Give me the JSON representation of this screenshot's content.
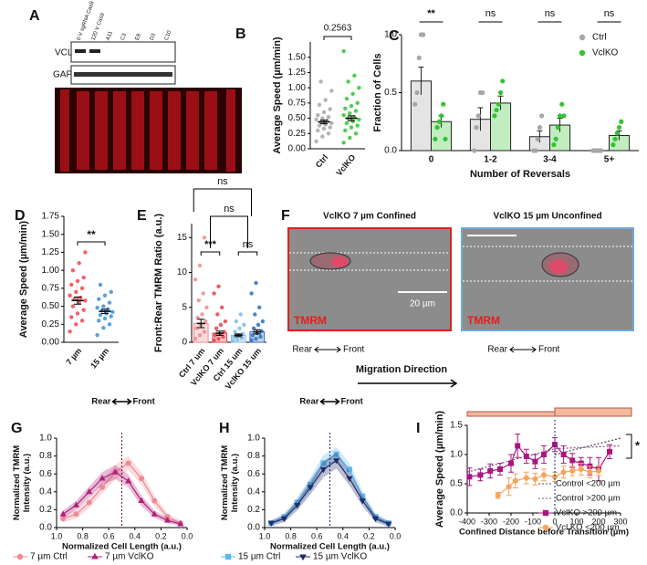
{
  "panel_a": {
    "panel": "A",
    "lanes": [
      "0 V sgRNA Cas9",
      "120 V Cas9",
      "A11",
      "C3",
      "E8",
      "D3",
      "C10"
    ],
    "bands": [
      "VCL",
      "GAPDH"
    ]
  },
  "panel_f": {
    "panel": "F",
    "images": [
      {
        "title": "VclKO 7 µm Confined",
        "stain": "TMRM",
        "scale_bar": "20 µm"
      },
      {
        "title": "VclKO 15 µm Unconfined",
        "stain": "TMRM"
      }
    ],
    "orientation": [
      {
        "rear": "Rear",
        "front": "Front"
      },
      {
        "rear": "Rear",
        "front": "Front"
      }
    ],
    "direction": "Migration Direction"
  },
  "chart_data": [
    {
      "panel": "B",
      "type": "strip",
      "ylabel": "Average Speed (µm/min)",
      "categories": [
        "Ctrl",
        "VclKO"
      ],
      "ylim": [
        0,
        1.75
      ],
      "yticks": [
        {
          "value": 0,
          "label": "0.00"
        },
        {
          "value": 0.25,
          "label": "0.25"
        },
        {
          "value": 0.5,
          "label": "0.50"
        },
        {
          "value": 0.75,
          "label": "0.75"
        },
        {
          "value": 1,
          "label": "1.00"
        },
        {
          "value": 1.25,
          "label": "1.25"
        },
        {
          "value": 1.5,
          "label": "1.50"
        }
      ],
      "annotations": [
        "0.2563"
      ],
      "groups": [
        {
          "color": "#a6a6a6",
          "values": [
            0.12,
            0.2,
            0.25,
            0.3,
            0.33,
            0.35,
            0.38,
            0.4,
            0.42,
            0.44,
            0.46,
            0.48,
            0.5,
            0.52,
            0.55,
            0.6,
            0.65,
            0.72,
            0.8,
            0.95,
            1.1
          ],
          "mean": 0.44,
          "sem": 0.03
        },
        {
          "color": "#33c233",
          "values": [
            0.1,
            0.18,
            0.25,
            0.3,
            0.35,
            0.38,
            0.42,
            0.45,
            0.48,
            0.5,
            0.52,
            0.55,
            0.58,
            0.62,
            0.66,
            0.7,
            0.75,
            0.82,
            0.9,
            1.0,
            1.1,
            1.2,
            1.6
          ],
          "mean": 0.5,
          "sem": 0.04
        }
      ]
    },
    {
      "panel": "C",
      "type": "bar",
      "xlabel": "Number of Reversals",
      "ylabel": "Fraction of Cells",
      "categories": [
        "0",
        "1-2",
        "3-4",
        "5+"
      ],
      "ylim": [
        0,
        1.0
      ],
      "yticks": [
        {
          "value": 0,
          "label": "0.0"
        },
        0.5,
        {
          "value": 1,
          "label": "1.0"
        }
      ],
      "annotations": [
        "**",
        "ns",
        "ns",
        "ns"
      ],
      "legend": "upper right",
      "series": [
        {
          "name": "Ctrl",
          "color": "#a6a6a6",
          "values": [
            0.6,
            0.27,
            0.12,
            0.0
          ],
          "errors": [
            0.12,
            0.1,
            0.05,
            0.0
          ],
          "points": [
            [
              0.4,
              0.5,
              0.8,
              1.0,
              1.0
            ],
            [
              0.0,
              0.2,
              0.3,
              0.5,
              0.5
            ],
            [
              0.0,
              0.0,
              0.1,
              0.2,
              0.3
            ],
            [
              0.0,
              0.0,
              0.0,
              0.0,
              0.0
            ]
          ]
        },
        {
          "name": "VclKO",
          "color": "#33c233",
          "values": [
            0.25,
            0.41,
            0.22,
            0.13
          ],
          "errors": [
            0.05,
            0.06,
            0.06,
            0.04
          ],
          "points": [
            [
              0.1,
              0.2,
              0.25,
              0.3,
              0.4,
              0.1
            ],
            [
              0.3,
              0.35,
              0.4,
              0.5,
              0.6
            ],
            [
              0.05,
              0.1,
              0.2,
              0.3,
              0.4,
              0.3
            ],
            [
              0.05,
              0.1,
              0.15,
              0.2,
              0.25
            ]
          ]
        }
      ]
    },
    {
      "panel": "D",
      "type": "strip",
      "ylabel": "Average Speed (µm/min)",
      "categories": [
        "7 µm",
        "15 µm"
      ],
      "ylim": [
        0,
        1.75
      ],
      "yticks": [
        {
          "value": 0,
          "label": "0.00"
        },
        {
          "value": 0.25,
          "label": "0.25"
        },
        {
          "value": 0.5,
          "label": "0.50"
        },
        {
          "value": 0.75,
          "label": "0.75"
        },
        {
          "value": 1,
          "label": "1.00"
        },
        {
          "value": 1.25,
          "label": "1.25"
        },
        {
          "value": 1.5,
          "label": "1.50"
        },
        {
          "value": 1.75,
          "label": "1.75"
        }
      ],
      "annotations": [
        "**"
      ],
      "groups": [
        {
          "color": "#f0454c",
          "values": [
            0.15,
            0.25,
            0.3,
            0.35,
            0.4,
            0.45,
            0.5,
            0.55,
            0.58,
            0.6,
            0.62,
            0.65,
            0.7,
            0.75,
            0.8,
            0.85,
            0.9,
            1.0,
            1.1,
            1.25
          ],
          "mean": 0.58,
          "sem": 0.05
        },
        {
          "color": "#3d8fd8",
          "values": [
            0.1,
            0.2,
            0.25,
            0.3,
            0.33,
            0.36,
            0.38,
            0.4,
            0.42,
            0.44,
            0.46,
            0.48,
            0.5,
            0.55,
            0.6,
            0.65,
            0.7,
            0.8
          ],
          "mean": 0.43,
          "sem": 0.03
        }
      ]
    },
    {
      "panel": "E",
      "type": "strip",
      "bars": true,
      "ylabel": "Front:Rear TMRM Ratio (a.u.)",
      "categories": [
        "Ctrl 7 um",
        "VclKO 7 um",
        "Ctrl 15 um",
        "VclKO 15 um"
      ],
      "ylim": [
        0,
        17
      ],
      "yticks": [
        0,
        5,
        10,
        15
      ],
      "annotations": [
        "***",
        "ns",
        "ns",
        "ns"
      ],
      "groups": [
        {
          "color": "#f08a8e",
          "values": [
            0.5,
            1,
            1.5,
            2,
            2.5,
            3,
            3.5,
            4,
            5,
            6,
            7,
            9,
            11,
            15
          ],
          "mean": 2.7,
          "sem": 0.6
        },
        {
          "color": "#e8414b",
          "values": [
            0.3,
            0.5,
            0.8,
            1,
            1.2,
            1.5,
            2,
            2.5,
            3,
            4,
            5,
            7,
            8
          ],
          "mean": 1.3,
          "sem": 0.3
        },
        {
          "color": "#7fbbe8",
          "values": [
            0.2,
            0.4,
            0.6,
            0.8,
            1,
            1.2,
            1.5,
            2,
            2.5,
            3,
            4
          ],
          "mean": 1.0,
          "sem": 0.2
        },
        {
          "color": "#2f6fbf",
          "values": [
            0.3,
            0.5,
            0.8,
            1,
            1.3,
            1.6,
            2,
            2.5,
            3,
            4,
            5,
            7,
            8.5
          ],
          "mean": 1.5,
          "sem": 0.3
        }
      ]
    },
    {
      "panel": "G",
      "type": "line",
      "xlabel": "Normalized Cell Length (a.u.)",
      "ylabel": [
        "Normalized TMRM",
        "Intensity (a.u.)"
      ],
      "xlim": [
        1,
        0
      ],
      "xticks": [
        {
          "value": 1,
          "label": "1.0"
        },
        0.8,
        0.6,
        0.4,
        0.2,
        {
          "value": 0,
          "label": "0.0"
        }
      ],
      "ylim": [
        0,
        1
      ],
      "yticks": [
        {
          "value": 0,
          "label": "0.0"
        },
        0.2,
        0.4,
        0.6,
        0.8,
        {
          "value": 1,
          "label": "1.0"
        }
      ],
      "vline": 0.5,
      "annotations": [
        "Rear",
        "Front"
      ],
      "legend": "below",
      "x": [
        0.95,
        0.85,
        0.75,
        0.65,
        0.55,
        0.45,
        0.35,
        0.25,
        0.15,
        0.05
      ],
      "series": [
        {
          "name": "7 µm Ctrl",
          "color": "#f08a96",
          "marker": "circle",
          "band": true,
          "values": [
            0.1,
            0.15,
            0.28,
            0.45,
            0.62,
            0.72,
            0.55,
            0.3,
            0.12,
            0.05
          ],
          "errors": [
            0.04,
            0.05,
            0.06,
            0.07,
            0.08,
            0.08,
            0.07,
            0.06,
            0.04,
            0.03
          ]
        },
        {
          "name": "7 µm VclKO",
          "color": "#b0217a",
          "marker": "triangle",
          "band": true,
          "values": [
            0.15,
            0.25,
            0.4,
            0.55,
            0.62,
            0.52,
            0.3,
            0.15,
            0.08,
            0.04
          ],
          "errors": [
            0.04,
            0.05,
            0.06,
            0.07,
            0.08,
            0.07,
            0.06,
            0.04,
            0.03,
            0.02
          ]
        }
      ]
    },
    {
      "panel": "H",
      "type": "line",
      "xlabel": "Normalized Cell Length (a.u.)",
      "ylabel": [
        "Normalized TMRM",
        "Intensity (a.u.)"
      ],
      "xlim": [
        1,
        0
      ],
      "xticks": [
        {
          "value": 1,
          "label": "1.0"
        },
        0.8,
        0.6,
        0.4,
        0.2,
        {
          "value": 0,
          "label": "0.0"
        }
      ],
      "ylim": [
        0,
        1
      ],
      "yticks": [
        {
          "value": 0,
          "label": "0.0"
        },
        0.2,
        0.4,
        0.6,
        0.8,
        {
          "value": 1,
          "label": "1.0"
        }
      ],
      "vline": 0.5,
      "annotations": [
        "Rear",
        "Front"
      ],
      "legend": "below",
      "x": [
        0.95,
        0.85,
        0.75,
        0.65,
        0.55,
        0.45,
        0.35,
        0.25,
        0.15,
        0.05
      ],
      "series": [
        {
          "name": "15 µm Ctrl",
          "color": "#5fb8ec",
          "marker": "square",
          "band": true,
          "values": [
            0.05,
            0.12,
            0.28,
            0.48,
            0.72,
            0.82,
            0.65,
            0.35,
            0.12,
            0.05
          ],
          "errors": [
            0.03,
            0.04,
            0.06,
            0.08,
            0.09,
            0.08,
            0.07,
            0.06,
            0.04,
            0.03
          ]
        },
        {
          "name": "15 µm VclKO",
          "color": "#1f2a6b",
          "marker": "triangle-down",
          "band": true,
          "values": [
            0.05,
            0.1,
            0.25,
            0.45,
            0.65,
            0.75,
            0.55,
            0.3,
            0.1,
            0.04
          ],
          "errors": [
            0.03,
            0.04,
            0.06,
            0.08,
            0.09,
            0.09,
            0.08,
            0.06,
            0.04,
            0.03
          ]
        }
      ]
    },
    {
      "panel": "I",
      "type": "line",
      "xlabel": "Confined Distance before Transition (µm)",
      "ylabel": "Average  Speed (µm/min)",
      "xlim": [
        -400,
        300
      ],
      "xticks": [
        -400,
        -300,
        -200,
        -100,
        0,
        100,
        200,
        300
      ],
      "ylim": [
        0,
        1.5
      ],
      "yticks": [
        {
          "value": 0,
          "label": "0.0"
        },
        0.5,
        {
          "value": 1,
          "label": "1.0"
        },
        1.5
      ],
      "vline": 0,
      "annotations": [
        "*"
      ],
      "legend": "right",
      "series": [
        {
          "name": "Control <200 µm",
          "color": "#444444",
          "style": "dotted",
          "x": [
            0,
            300
          ],
          "values": [
            1.0,
            1.28
          ]
        },
        {
          "name": "Control >200 µm",
          "color": "#8a4a8a",
          "style": "dotted",
          "x": [
            -400,
            0,
            300
          ],
          "values": [
            0.7,
            1.1,
            1.15
          ]
        },
        {
          "name": "VclKO >200 µm",
          "color": "#a8177f",
          "marker": "square",
          "x": [
            -390,
            -340,
            -295,
            -250,
            -200,
            -170,
            -130,
            -90,
            -50,
            0,
            40,
            80,
            120,
            160,
            200,
            250
          ],
          "values": [
            0.62,
            0.65,
            0.72,
            0.75,
            0.85,
            1.15,
            0.97,
            0.88,
            1.0,
            1.17,
            1.0,
            0.9,
            0.85,
            0.8,
            0.75,
            1.05
          ],
          "errors": [
            0.15,
            0.1,
            0.12,
            0.1,
            0.15,
            0.2,
            0.12,
            0.12,
            0.15,
            0.12,
            0.15,
            0.12,
            0.1,
            0.15,
            0.2,
            0.12
          ]
        },
        {
          "name": "Vcl KO <200 µm",
          "color": "#f6a45c",
          "marker": "circle",
          "x": [
            -260,
            -210,
            -180,
            -130,
            -90,
            -50,
            0,
            40,
            80,
            120,
            160,
            200
          ],
          "values": [
            0.3,
            0.45,
            0.55,
            0.6,
            0.58,
            0.65,
            0.62,
            0.7,
            0.72,
            0.75,
            0.7,
            0.72
          ],
          "errors": [
            0.05,
            0.15,
            0.12,
            0.1,
            0.1,
            0.1,
            0.08,
            0.1,
            0.08,
            0.1,
            0.1,
            0.08
          ]
        }
      ]
    }
  ]
}
